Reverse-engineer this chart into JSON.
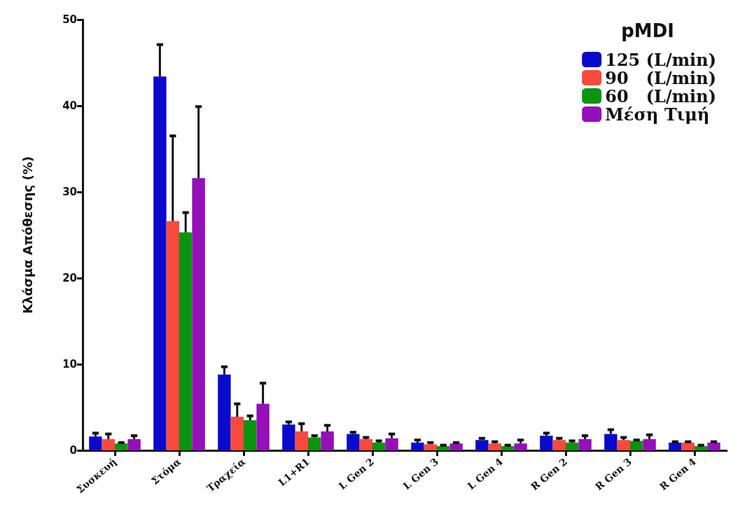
{
  "chart_data": {
    "type": "bar",
    "ylabel": "Κλάσμα Απόθεσης (%)",
    "legend_title": "pMDI",
    "legend": "top right",
    "categories": [
      "Συσκευή",
      "Στόμα",
      "Τραχεία",
      "L1+R1",
      "L Gen 2",
      "L Gen 3",
      "L Gen 4",
      "R Gen 2",
      "R Gen 3",
      "R Gen 4"
    ],
    "ylim": [
      0,
      50
    ],
    "yticks": [
      0,
      10,
      20,
      30,
      40,
      50
    ],
    "grid": false,
    "series": [
      {
        "name": "125 (L/min)",
        "color": "#0a0acc",
        "values": [
          1.6,
          43.4,
          8.8,
          3.0,
          1.9,
          0.9,
          1.2,
          1.7,
          1.9,
          0.9
        ],
        "errors": [
          [
            1.6,
            2.0
          ],
          [
            43.4,
            47.1
          ],
          [
            8.8,
            9.7
          ],
          [
            3.0,
            3.3
          ],
          [
            1.9,
            2.1
          ],
          [
            0.9,
            1.2
          ],
          [
            1.2,
            1.4
          ],
          [
            1.7,
            2.0
          ],
          [
            1.9,
            2.4
          ],
          [
            0.9,
            1.0
          ]
        ]
      },
      {
        "name": "90   (L/min)",
        "color": "#f84a3c",
        "values": [
          1.3,
          26.6,
          3.9,
          2.2,
          1.3,
          0.7,
          0.8,
          1.2,
          1.2,
          0.9
        ],
        "errors": [
          [
            1.3,
            1.9
          ],
          [
            26.6,
            36.5
          ],
          [
            3.9,
            5.4
          ],
          [
            2.2,
            3.1
          ],
          [
            1.3,
            1.5
          ],
          [
            0.7,
            0.9
          ],
          [
            0.8,
            1.0
          ],
          [
            1.2,
            1.4
          ],
          [
            1.2,
            1.5
          ],
          [
            0.9,
            1.0
          ]
        ]
      },
      {
        "name": "60   (L/min)",
        "color": "#0a9410",
        "values": [
          0.8,
          25.3,
          3.5,
          1.5,
          0.9,
          0.5,
          0.5,
          0.9,
          1.1,
          0.5
        ],
        "errors": [
          [
            0.8,
            0.9
          ],
          [
            25.3,
            27.6
          ],
          [
            3.5,
            4.0
          ],
          [
            1.5,
            1.7
          ],
          [
            0.9,
            1.1
          ],
          [
            0.5,
            0.6
          ],
          [
            0.5,
            0.6
          ],
          [
            0.9,
            1.1
          ],
          [
            1.1,
            1.2
          ],
          [
            0.5,
            0.6
          ]
        ]
      },
      {
        "name": "Μέση Τιμή",
        "color": "#9410b8",
        "values": [
          1.3,
          31.6,
          5.4,
          2.2,
          1.4,
          0.8,
          0.8,
          1.3,
          1.3,
          0.9
        ],
        "errors": [
          [
            1.3,
            1.7
          ],
          [
            31.6,
            39.9
          ],
          [
            5.4,
            7.8
          ],
          [
            2.2,
            2.9
          ],
          [
            1.4,
            1.9
          ],
          [
            0.8,
            0.9
          ],
          [
            0.8,
            1.2
          ],
          [
            1.3,
            1.7
          ],
          [
            1.3,
            1.8
          ],
          [
            0.9,
            1.0
          ]
        ]
      }
    ]
  }
}
